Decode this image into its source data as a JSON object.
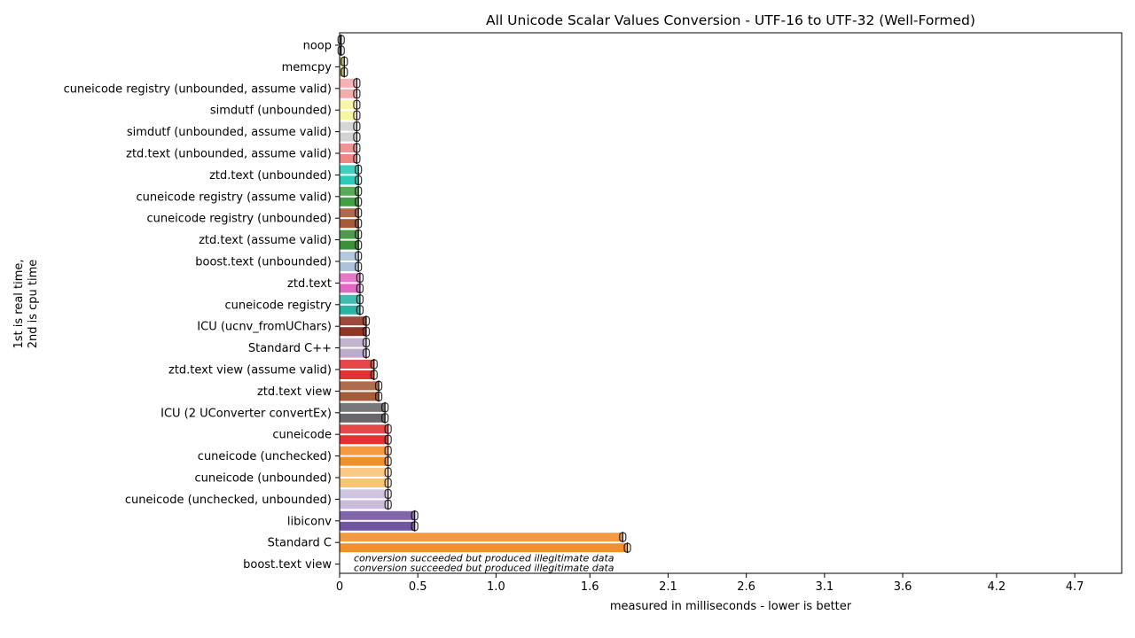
{
  "chart_data": {
    "type": "bar",
    "title": "All Unicode Scalar Values Conversion - UTF-16 to UTF-32 (Well-Formed)",
    "xlabel": "measured in milliseconds - lower is better",
    "ylabel_lines": [
      "1st is real time,",
      "2nd is cpu time"
    ],
    "xlim": [
      0,
      5.0
    ],
    "xticks": [
      {
        "value": 0,
        "label": "0"
      },
      {
        "value": 0.5,
        "label": "0.5"
      },
      {
        "value": 1.0,
        "label": "1.0"
      },
      {
        "value": 1.6,
        "label": "1.6"
      },
      {
        "value": 2.1,
        "label": "2.1"
      },
      {
        "value": 2.6,
        "label": "2.6"
      },
      {
        "value": 3.1,
        "label": "3.1"
      },
      {
        "value": 3.6,
        "label": "3.6"
      },
      {
        "value": 4.2,
        "label": "4.2"
      },
      {
        "value": 4.7,
        "label": "4.7"
      }
    ],
    "categories": [
      "noop",
      "memcpy",
      "cuneicode registry (unbounded, assume valid)",
      "simdutf (unbounded)",
      "simdutf (unbounded, assume valid)",
      "ztd.text (unbounded, assume valid)",
      "ztd.text (unbounded)",
      "cuneicode registry (assume valid)",
      "cuneicode registry (unbounded)",
      "ztd.text (assume valid)",
      "boost.text (unbounded)",
      "ztd.text",
      "cuneicode registry",
      "ICU (ucnv_fromUChars)",
      "Standard C++",
      "ztd.text view (assume valid)",
      "ztd.text view",
      "ICU (2 UConverter convertEx)",
      "cuneicode",
      "cuneicode (unchecked)",
      "cuneicode (unbounded)",
      "cuneicode (unchecked, unbounded)",
      "libiconv",
      "Standard C",
      "boost.text view"
    ],
    "series": [
      {
        "values": [
          0.01,
          0.03,
          0.11,
          0.11,
          0.11,
          0.11,
          0.12,
          0.12,
          0.12,
          0.12,
          0.12,
          0.13,
          0.13,
          0.17,
          0.17,
          0.22,
          0.25,
          0.29,
          0.31,
          0.31,
          0.31,
          0.31,
          0.48,
          1.81,
          null
        ]
      },
      {
        "values": [
          0.01,
          0.03,
          0.11,
          0.11,
          0.11,
          0.11,
          0.12,
          0.12,
          0.12,
          0.12,
          0.12,
          0.13,
          0.13,
          0.17,
          0.17,
          0.22,
          0.25,
          0.29,
          0.31,
          0.31,
          0.31,
          0.31,
          0.48,
          1.84,
          null
        ]
      }
    ],
    "colors": [
      "#6a2c91",
      "#b5b55a",
      "#f4a6a6",
      "#f9f59a",
      "#d0d0d0",
      "#f08080",
      "#1fc8b4",
      "#3a9a3a",
      "#a0522d",
      "#2e8b2e",
      "#a8c0d8",
      "#e060c0",
      "#20b0a0",
      "#8b2a1a",
      "#b8a8c8",
      "#e02828",
      "#a0522d",
      "#606060",
      "#e02828",
      "#f08a20",
      "#f8c070",
      "#c8b8d8",
      "#6a4c9c",
      "#f08a20",
      "#ffffff"
    ],
    "annotations": [
      "conversion succeeded but produced illegitimate data",
      "conversion succeeded but produced illegitimate data"
    ]
  }
}
